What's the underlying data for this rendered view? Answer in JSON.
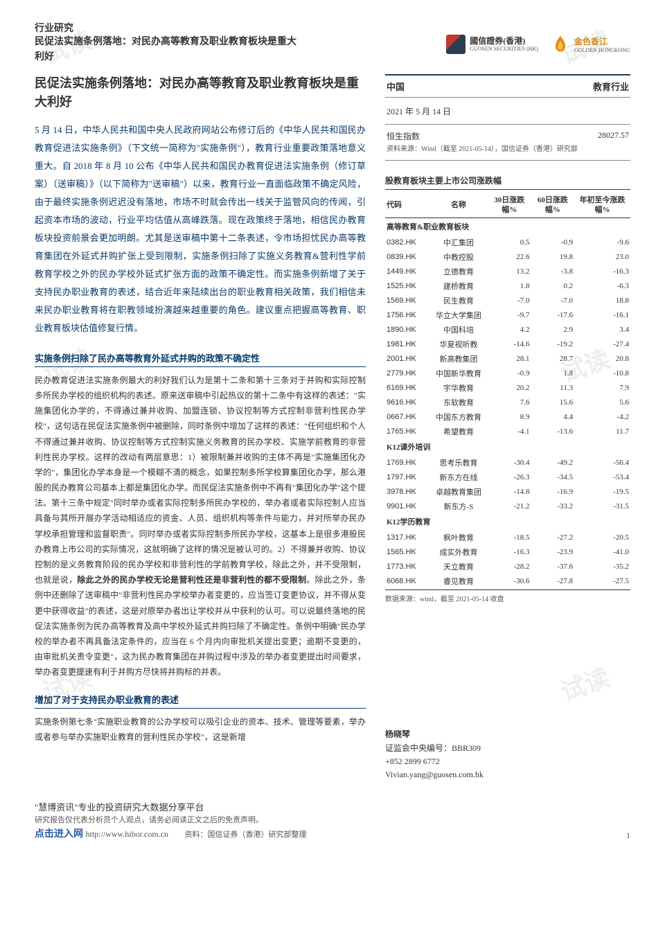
{
  "watermark": "试读",
  "header": {
    "category": "行业研究",
    "title": "民促法实施条例落地：对民办高等教育及职业教育板块是重大利好",
    "logo1_main": "國信證券(香港)",
    "logo1_sub": "GUOSEN SECURITIES (HK)",
    "logo2_main": "金色香江",
    "logo2_sub": "GOLDEN HONGKONG"
  },
  "main": {
    "title": "民促法实施条例落地：对民办高等教育及职业教育板块是重大利好",
    "intro": "5 月 14 日，中华人民共和国中央人民政府网站公布修订后的《中华人民共和国民办教育促进法实施条例》（下文统一简称为\"实施条例\"），教育行业重要政策落地意义重大。自 2018 年 8 月 10 公布《中华人民共和国民办教育促进法实施条例（修订草案）（送审稿）》（以下简称为\"送审稿\"）以来，教育行业一直面临政策不确定风险，由于最终实施条例迟迟没有落地，市场不时就会传出一线关于监管风向的传闻，引起资本市场的波动，行业平均估值从高峰跌落。现在政策终于落地，相信民办教育板块投资前景会更加明朗。尤其是送审稿中第十二条表述，令市场担忧民办高等教育集团在外延式并购扩张上受到限制，实施条例扫除了实施义务教育&营利性学前教育学校之外的民办学校外延式扩张方面的政策不确定性。而实施条例新增了关于支持民办职业教育的表述，结合近年来陆续出台的职业教育相关政策，我们相信未来民办职业教育将在职教领域扮演越来越重要的角色。建议重点把握高等教育、职业教育板块估值修复行情。",
    "sec1_head": "实施条例扫除了民办高等教育外延式并购的政策不确定性",
    "sec1_body_a": "民办教育促进法实施条例最大的利好我们认为是第十二条和第十三条对于并购和实际控制多所民办学校的组织机构的表述。原来送审稿中引起热议的第十二条中有这样的表述：\"实施集团化办学的，不得通过兼并收购、加盟连锁、协议控制等方式控制非营利性民办学校\"，这句话在民促法实施条例中被删除，同时条例中增加了这样的表述：\"任何组织和个人不得通过兼并收购、协议控制等方式控制实施义务教育的民办学校、实施学前教育的非营利性民办学校。这样的改动有两层意思：1）被限制兼并收购的主体不再是\"实施集团化办学的\"，集团化办学本身是一个模糊不清的概念，如果控制多所学校算集团化办学，那么港股的民办教育公司基本上都是集团化办学。而民促法实施条例中不再有\"集团化办学\"这个提法。第十三条中规定\"同时举办或者实际控制多所民办学校的，举办者或者实际控制人应当具备与其所开展办学活动相适应的资金、人员、组织机构等条件与能力，并对所举办民办学校承担管理和监督职责\"。同时举办或者实际控制多所民办学校，这基本上是很多港股民办教育上市公司的实际情况，这就明确了这样的情况是被认可的。2）不得兼并收购、协议控制的是义务教育阶段的民办学校和非营利性的学前教育学校，除此之外，并不受限制，也就是说，",
    "sec1_bold": "除此之外的民办学校无论是营利性还是非营利性的都不受限制",
    "sec1_body_b": "。除此之外，条例中还删除了送审稿中\"非营利性民办学校举办者变更的，应当签订变更协议，并不得从变更中获得收益\"的表述，这是对原举办者出让学校并从中获利的认可。可以说最终落地的民促法实施条例为民办高等教育及高中学校外延式并购扫除了不确定性。条例中明确\"民办学校的举办者不再具备法定条件的，应当在 6 个月内向审批机关提出变更；逾期不变更的，由审批机关责令变更\"，这为民办教育集团在并购过程中涉及的举办者变更提出时间要求，举办者变更提速有利于并购方尽快将并购标的并表。",
    "sec2_head": "增加了对于支持民办职业教育的表述",
    "sec2_body": "实施条例第七条\"实施职业教育的公办学校可以吸引企业的资本、技术、管理等要素，举办或者参与举办实施职业教育的营利性民办学校\"，这是新增"
  },
  "info": {
    "country": "中国",
    "industry": "教育行业",
    "date": "2021 年 5 月 14 日",
    "index_label": "恒生指数",
    "index_value": "28027.57",
    "index_source": "资料来源：Wind（截至 2021-05-14），国信证券（香港）研究部"
  },
  "table": {
    "title": "股教育板块主要上市公司涨跌幅",
    "head_code": "代码",
    "head_name": "名称",
    "head_c1": "30日涨跌幅%",
    "head_c2": "60日涨跌幅%",
    "head_c3": "年初至今涨跌幅%",
    "sub1": "高等教育&职业教育板块",
    "sub2": "K12课外培训",
    "sub3": "K12学历教育",
    "rows1": [
      {
        "code": "0382.HK",
        "name": "中汇集团",
        "c1": "0.5",
        "c2": "-0.9",
        "c3": "-9.6"
      },
      {
        "code": "0839.HK",
        "name": "中教控股",
        "c1": "22.6",
        "c2": "19.8",
        "c3": "23.0"
      },
      {
        "code": "1449.HK",
        "name": "立德教育",
        "c1": "13.2",
        "c2": "-3.8",
        "c3": "-16.3"
      },
      {
        "code": "1525.HK",
        "name": "建桥教育",
        "c1": "1.8",
        "c2": "0.2",
        "c3": "-6.3"
      },
      {
        "code": "1569.HK",
        "name": "民生教育",
        "c1": "-7.0",
        "c2": "-7.0",
        "c3": "18.8"
      },
      {
        "code": "1756.HK",
        "name": "华立大学集团",
        "c1": "-9.7",
        "c2": "-17.6",
        "c3": "-16.1"
      },
      {
        "code": "1890.HK",
        "name": "中国科培",
        "c1": "4.2",
        "c2": "2.9",
        "c3": "3.4"
      },
      {
        "code": "1981.HK",
        "name": "华夏视听教",
        "c1": "-14.6",
        "c2": "-19.2",
        "c3": "-27.4"
      },
      {
        "code": "2001.HK",
        "name": "新高教集团",
        "c1": "28.1",
        "c2": "28.7",
        "c3": "20.8"
      },
      {
        "code": "2779.HK",
        "name": "中国新华教育",
        "c1": "-0.9",
        "c2": "1.8",
        "c3": "-10.8"
      },
      {
        "code": "6169.HK",
        "name": "宇华教育",
        "c1": "20.2",
        "c2": "11.3",
        "c3": "7.9"
      },
      {
        "code": "9616.HK",
        "name": "东软教育",
        "c1": "7.6",
        "c2": "15.6",
        "c3": "5.6"
      },
      {
        "code": "0667.HK",
        "name": "中国东方教育",
        "c1": "8.9",
        "c2": "4.4",
        "c3": "-4.2"
      },
      {
        "code": "1765.HK",
        "name": "希望教育",
        "c1": "-4.1",
        "c2": "-13.6",
        "c3": "11.7"
      }
    ],
    "rows2": [
      {
        "code": "1769.HK",
        "name": "思考乐教育",
        "c1": "-30.4",
        "c2": "-49.2",
        "c3": "-56.4"
      },
      {
        "code": "1797.HK",
        "name": "新东方在线",
        "c1": "-26.3",
        "c2": "-34.5",
        "c3": "-53.4"
      },
      {
        "code": "3978.HK",
        "name": "卓越教育集团",
        "c1": "-14.8",
        "c2": "-16.9",
        "c3": "-19.5"
      },
      {
        "code": "9901.HK",
        "name": "新东方-S",
        "c1": "-21.2",
        "c2": "-33.2",
        "c3": "-31.5"
      }
    ],
    "rows3": [
      {
        "code": "1317.HK",
        "name": "枫叶教育",
        "c1": "-18.5",
        "c2": "-27.2",
        "c3": "-20.5"
      },
      {
        "code": "1565.HK",
        "name": "成实外教育",
        "c1": "-16.3",
        "c2": "-23.9",
        "c3": "-41.0"
      },
      {
        "code": "1773.HK",
        "name": "天立教育",
        "c1": "-28.2",
        "c2": "-37.6",
        "c3": "-35.2"
      },
      {
        "code": "6068.HK",
        "name": "睿见教育",
        "c1": "-30.6",
        "c2": "-27.8",
        "c3": "-27.5"
      }
    ],
    "source": "数据来源：wind，截至 2021-05-14 收盘"
  },
  "analyst": {
    "name": "杨晓琴",
    "license": "证监会中央编号：BBR309",
    "phone": "+852 2899 6772",
    "email": "Vivian.yang@guosen.com.hk"
  },
  "footer": {
    "brand_a": "\"慧博资讯\"",
    "brand_b": "专业的投资研究大数据分享平台",
    "line2": "研究报告仅代表分析员个人观点，请务必阅读正文之后的免责声明。",
    "line3_a": "点击进入网",
    "line3_b": "http://www.hibor.com.cn",
    "line3_c": "资料：国信证券（香港）研究部整理",
    "page": "1"
  }
}
